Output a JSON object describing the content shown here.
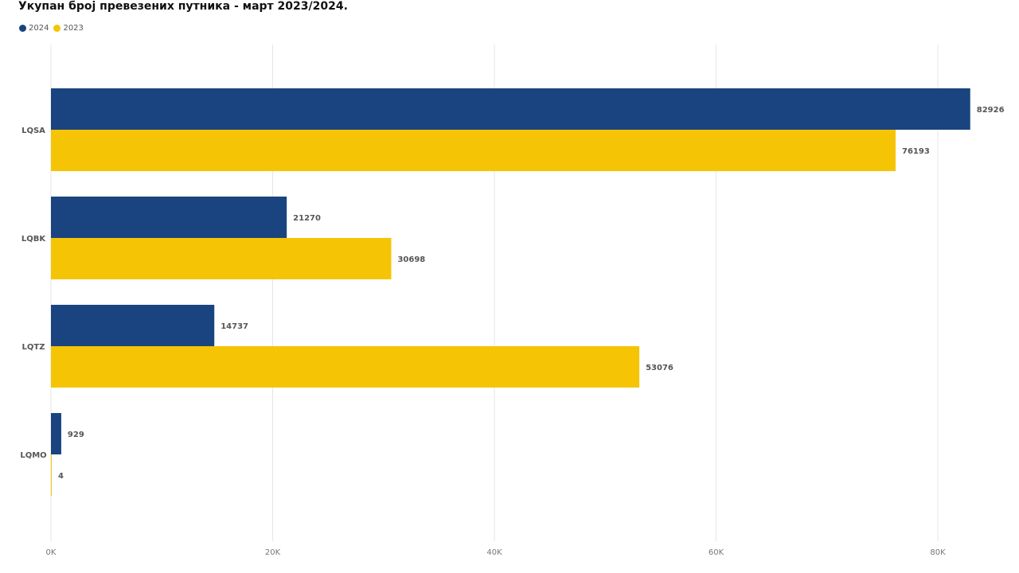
{
  "chart_data": {
    "type": "bar",
    "orientation": "horizontal",
    "title": "Укупан број превезених путника - март 2023/2024.",
    "categories": [
      "LQSA",
      "LQBK",
      "LQTZ",
      "LQMO"
    ],
    "series": [
      {
        "name": "2024",
        "color": "#1a4480",
        "values": [
          82926,
          21270,
          14737,
          929
        ]
      },
      {
        "name": "2023",
        "color": "#f5c405",
        "values": [
          76193,
          30698,
          53076,
          4
        ]
      }
    ],
    "x_ticks": [
      0,
      20000,
      40000,
      60000,
      80000
    ],
    "x_tick_labels": [
      "0K",
      "20K",
      "40K",
      "60K",
      "80K"
    ],
    "xlim": [
      0,
      88000
    ],
    "grid": true,
    "legend_position": "top-left",
    "data_labels": true
  }
}
